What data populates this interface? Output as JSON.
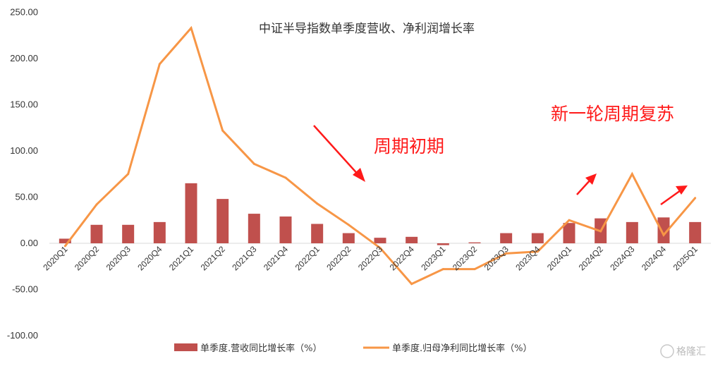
{
  "chart_data": {
    "type": "bar+line",
    "title": "中证半导指数单季度营收、净利润增长率",
    "categories": [
      "2020Q1",
      "2020Q2",
      "2020Q3",
      "2020Q4",
      "2021Q1",
      "2021Q2",
      "2021Q3",
      "2021Q4",
      "2022Q1",
      "2022Q2",
      "2022Q3",
      "2022Q4",
      "2023Q1",
      "2023Q2",
      "2023Q3",
      "2023Q4",
      "2024Q1",
      "2024Q2",
      "2024Q3",
      "2024Q4",
      "2025Q1"
    ],
    "y_ticks": [
      "250.00",
      "200.00",
      "150.00",
      "100.00",
      "50.00",
      "0.00",
      "-50.00",
      "-100.00"
    ],
    "ylim": [
      -100,
      250
    ],
    "series": [
      {
        "name": "单季度.营收同比增长率（%）",
        "type": "bar",
        "color": "#c0504d",
        "values": [
          5,
          20,
          20,
          23,
          65,
          48,
          32,
          29,
          21,
          11,
          6,
          7,
          -2,
          1,
          11,
          11,
          22,
          27,
          23,
          28,
          23
        ]
      },
      {
        "name": "单季度.归母净利同比增长率（%）",
        "type": "line",
        "color": "#f79646",
        "values": [
          -3,
          42,
          75,
          194,
          233,
          122,
          86,
          71,
          43,
          20,
          -5,
          -44,
          -28,
          -28,
          -11,
          -9,
          25,
          13,
          75,
          9,
          49
        ]
      }
    ],
    "annotations": [
      {
        "text": "周期初期",
        "color": "#ff0000"
      },
      {
        "text": "新一轮周期复苏",
        "color": "#ff0000"
      }
    ],
    "legend_position": "bottom",
    "watermark": "格隆汇"
  }
}
